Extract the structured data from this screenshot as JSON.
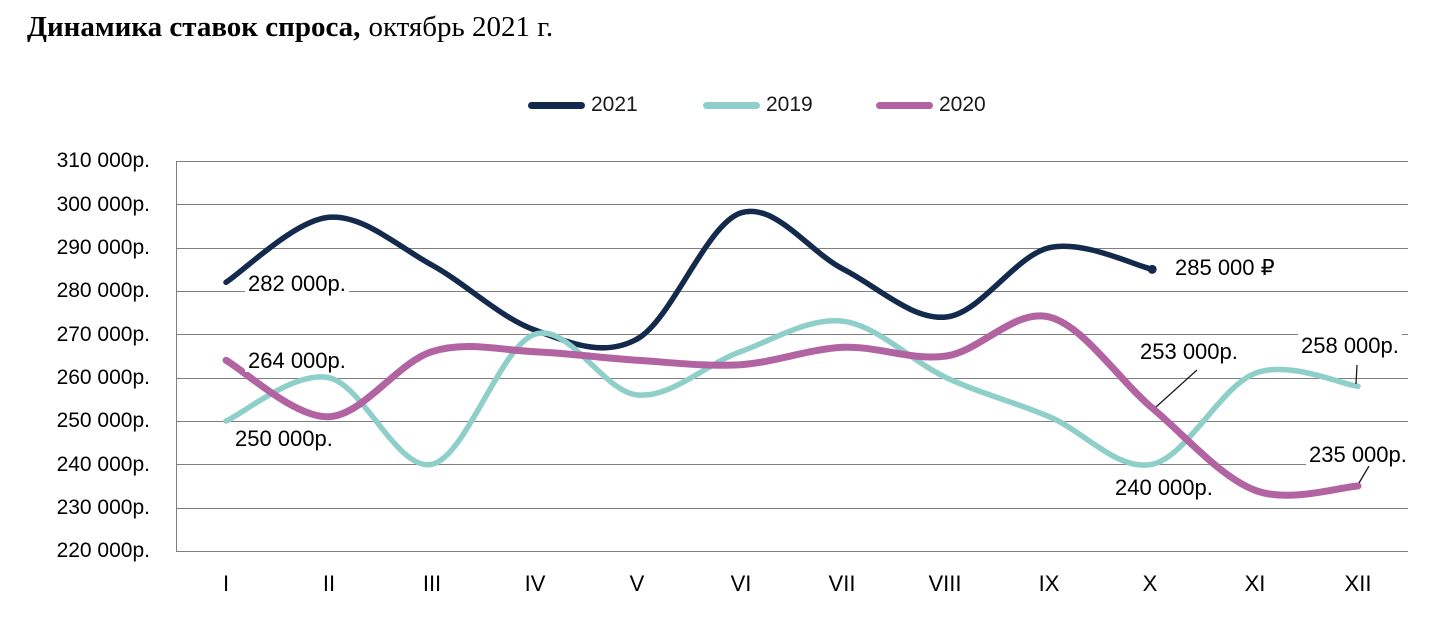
{
  "title": {
    "bold": "Динамика ставок спроса,",
    "regular": "октябрь 2021 г."
  },
  "legend": [
    {
      "label": "2021",
      "color": "#132A4D"
    },
    {
      "label": "2019",
      "color": "#8ECFC9"
    },
    {
      "label": "2020",
      "color": "#B164A1"
    }
  ],
  "y_axis": {
    "labels": [
      "310 000р.",
      "300 000р.",
      "290 000р.",
      "280 000р.",
      "270 000р.",
      "260 000р.",
      "250 000р.",
      "240 000р.",
      "230 000р.",
      "220 000р."
    ]
  },
  "x_axis": {
    "labels": [
      "I",
      "II",
      "III",
      "IV",
      "V",
      "VI",
      "VII",
      "VIII",
      "IX",
      "X",
      "XI",
      "XII"
    ]
  },
  "annotations": [
    {
      "text": "282 000р.",
      "series": "2021",
      "month": "I"
    },
    {
      "text": "264 000р.",
      "series": "2020",
      "month": "I"
    },
    {
      "text": "250 000р.",
      "series": "2019",
      "month": "I"
    },
    {
      "text": "285 000 ₽",
      "series": "2021",
      "month": "X"
    },
    {
      "text": "253 000р.",
      "series": "2020",
      "month": "X"
    },
    {
      "text": "258 000р.",
      "series": "2019",
      "month": "XII"
    },
    {
      "text": "240 000р.",
      "series": "2019",
      "month": "X"
    },
    {
      "text": "235 000р.",
      "series": "2020",
      "month": "XII"
    }
  ],
  "chart_data": {
    "type": "line",
    "title": "Динамика ставок спроса, октябрь 2021 г.",
    "categories": [
      "I",
      "II",
      "III",
      "IV",
      "V",
      "VI",
      "VII",
      "VIII",
      "IX",
      "X",
      "XI",
      "XII"
    ],
    "series": [
      {
        "name": "2021",
        "color": "#132A4D",
        "stroke_width": 5.5,
        "end_dot": true,
        "values": [
          282000,
          297000,
          286000,
          271000,
          269000,
          298000,
          285000,
          274000,
          290000,
          285000,
          null,
          null
        ]
      },
      {
        "name": "2019",
        "color": "#8ECFC9",
        "stroke_width": 5.5,
        "end_dot": false,
        "values": [
          250000,
          260000,
          240000,
          270000,
          256000,
          266000,
          273000,
          260000,
          251000,
          240000,
          261000,
          258000
        ]
      },
      {
        "name": "2020",
        "color": "#B164A1",
        "stroke_width": 7,
        "end_dot": false,
        "values": [
          264000,
          251000,
          266000,
          266000,
          264000,
          263000,
          267000,
          265000,
          274000,
          253000,
          234000,
          235000
        ]
      }
    ],
    "ylim": [
      220000,
      310000
    ],
    "ytick_step": 10000,
    "ytick_suffix": " 000р.",
    "grid": true,
    "legend_position": "top",
    "smooth": true
  }
}
